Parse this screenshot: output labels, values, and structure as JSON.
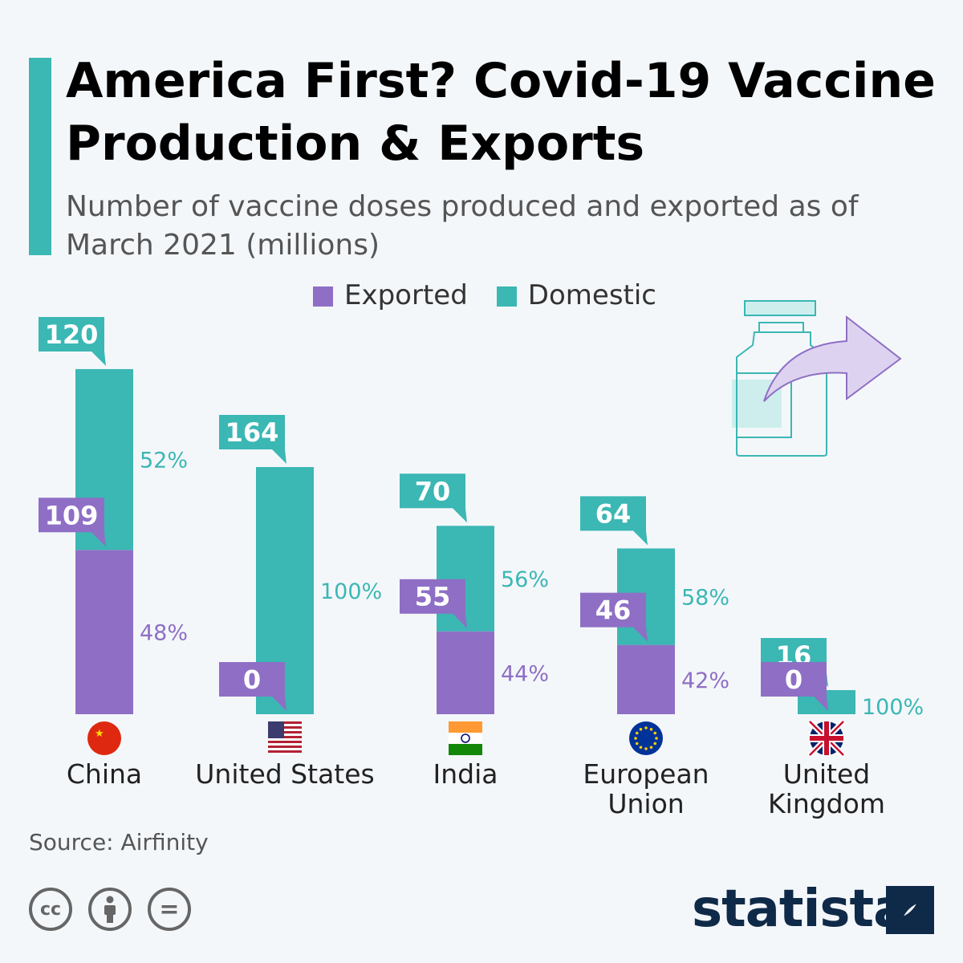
{
  "title": "America First? Covid-19 Vaccine Production & Exports",
  "subtitle": "Number of vaccine doses produced and exported as of March 2021 (millions)",
  "source": "Source: Airfinity",
  "brand": "statista",
  "license_icons": [
    "cc-icon",
    "attribution-icon",
    "no-derivatives-icon"
  ],
  "license_text": {
    "cc": "cc",
    "eq": "="
  },
  "colors": {
    "exported": "#8e6fc5",
    "domestic": "#3bb7b4"
  },
  "chart_data": {
    "type": "bar",
    "stacked": true,
    "title": "America First? Covid-19 Vaccine Production & Exports",
    "categories": [
      "China",
      "United States",
      "India",
      "European Union",
      "United Kingdom"
    ],
    "series": [
      {
        "name": "Exported",
        "values": [
          109,
          0,
          55,
          46,
          0
        ],
        "percent_labels": [
          "48%",
          "",
          "44%",
          "42%",
          ""
        ]
      },
      {
        "name": "Domestic",
        "values": [
          120,
          164,
          70,
          64,
          16
        ],
        "percent_labels": [
          "52%",
          "100%",
          "56%",
          "58%",
          "100%"
        ]
      }
    ],
    "legend": "top-center",
    "grid": false
  }
}
